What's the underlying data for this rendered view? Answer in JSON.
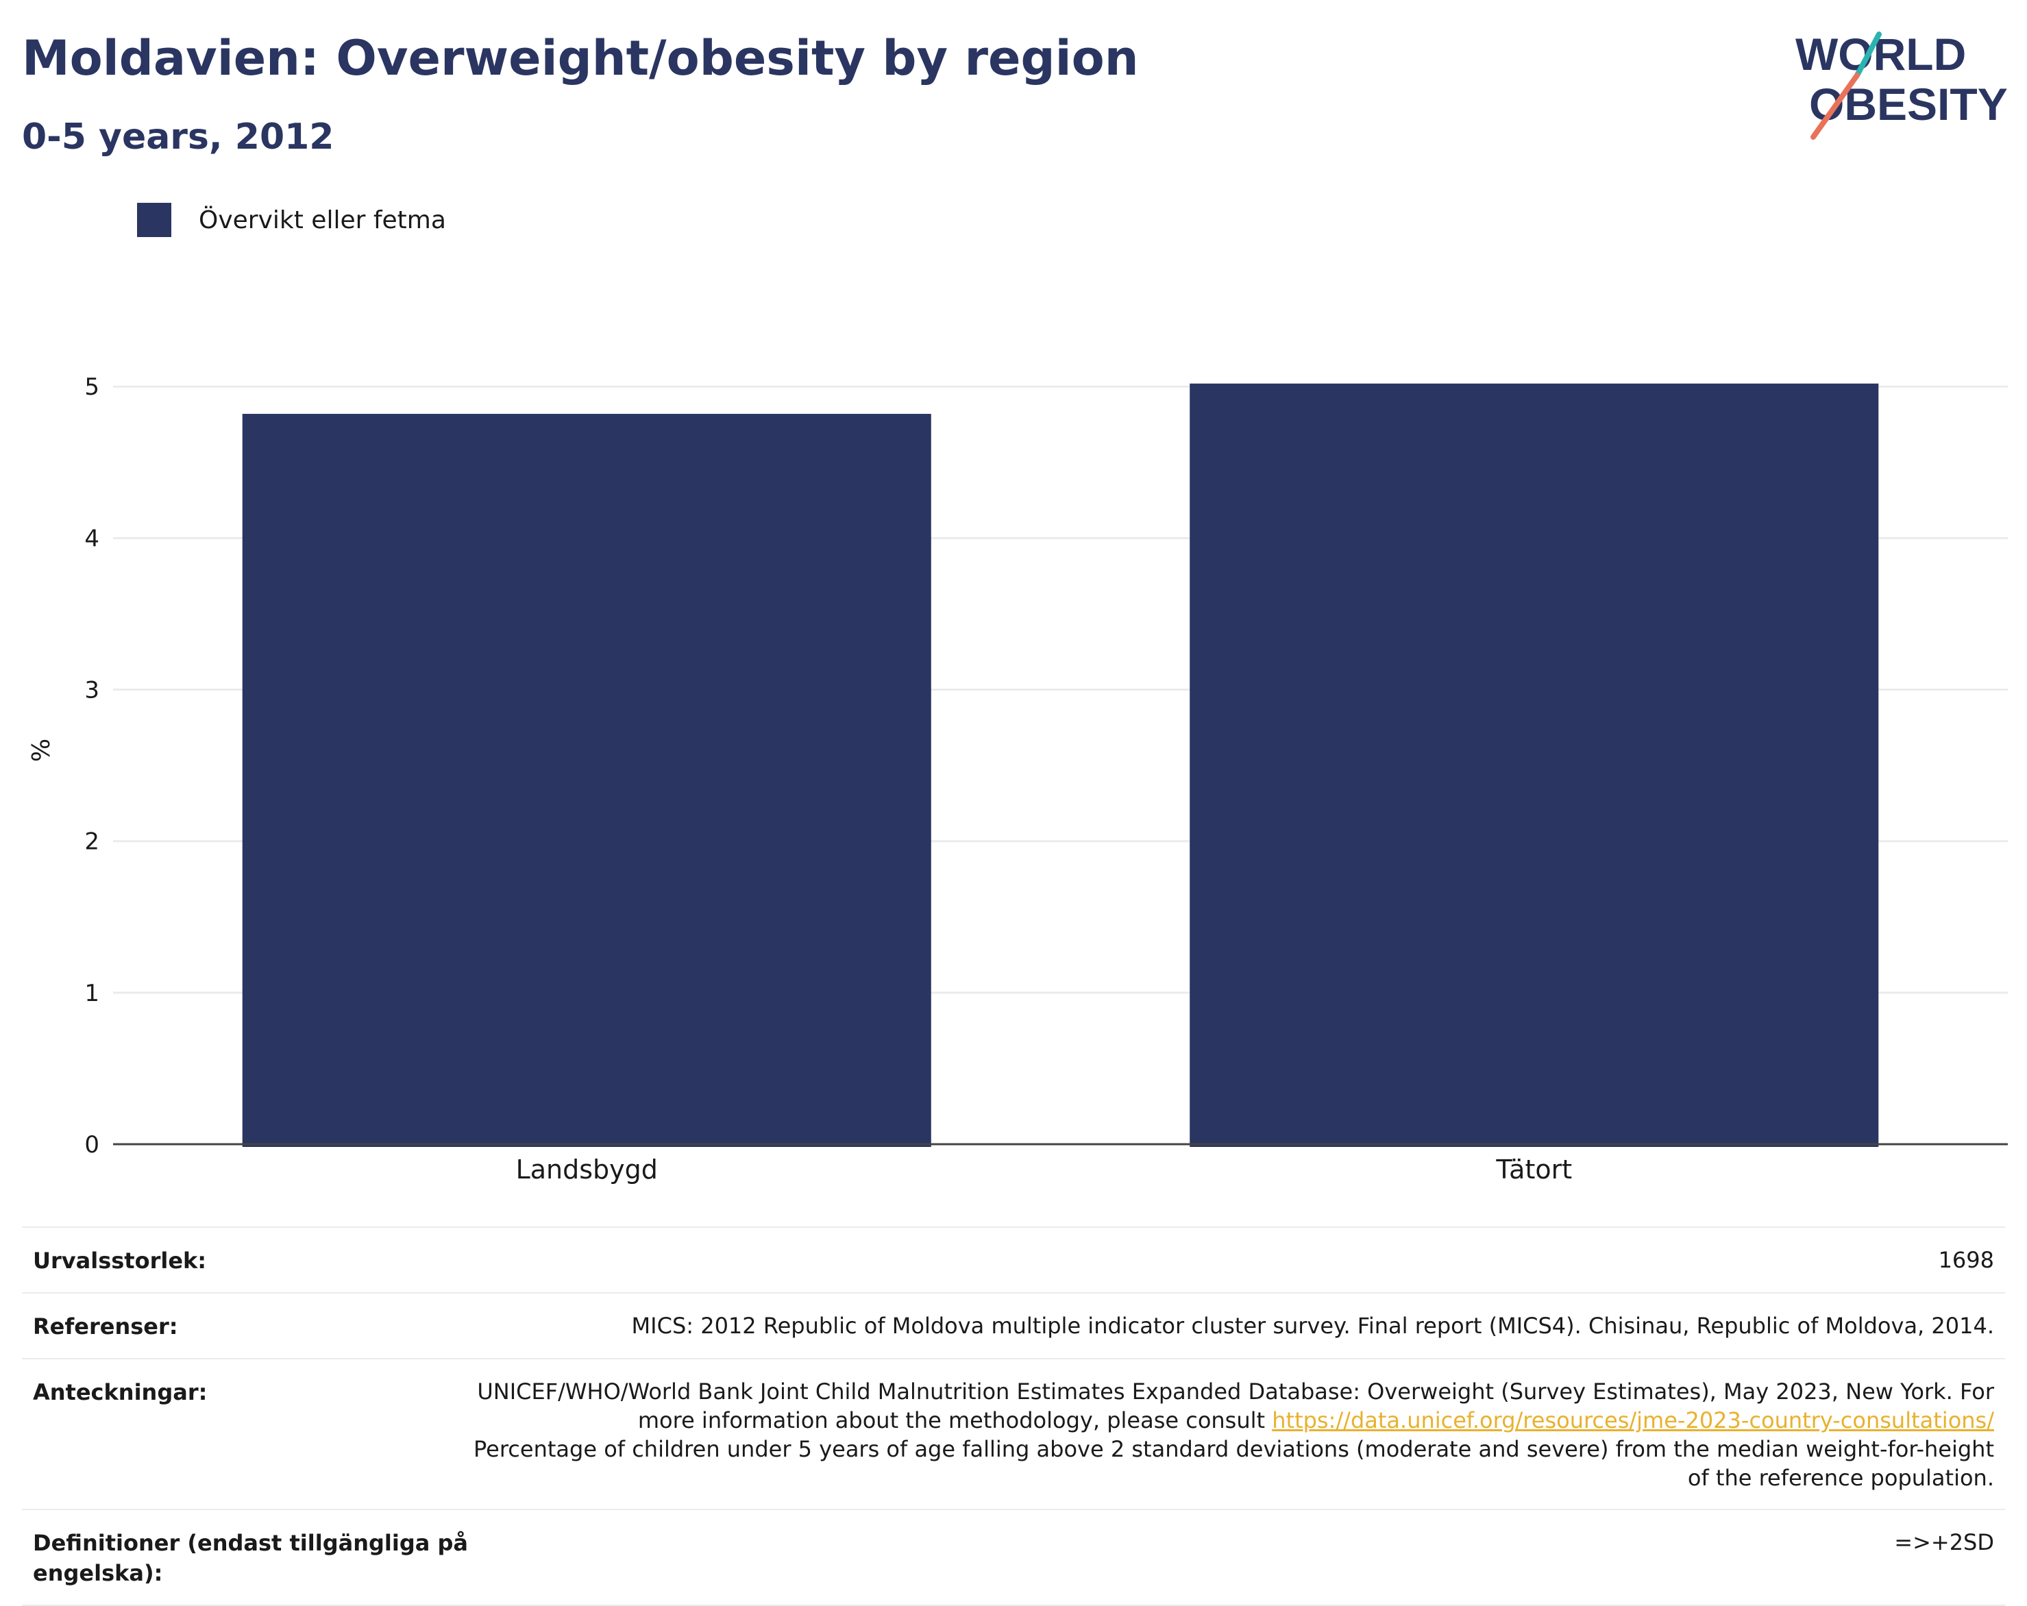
{
  "header": {
    "title": "Moldavien: Overweight/obesity by region",
    "subtitle": "0-5 years, 2012"
  },
  "logo": {
    "line1": "WORLD",
    "line2": "OBESITY",
    "icon": "world-obesity-logo"
  },
  "colors": {
    "bar": "#2a3561",
    "title": "#2a3561",
    "accent": "#e8b12e",
    "logo_teal": "#2bb3b1",
    "logo_coral": "#e8735a",
    "grid": "#e9ecef",
    "axis": "#444444"
  },
  "chart_data": {
    "type": "bar",
    "categories": [
      "Landsbygd",
      "Tätort"
    ],
    "series": [
      {
        "name": "Övervikt eller fetma",
        "values": [
          4.82,
          5.02
        ]
      }
    ],
    "ylabel": "%",
    "ylim": [
      0,
      5.2
    ],
    "yticks": [
      0,
      1,
      2,
      3,
      4,
      5
    ],
    "grid": true,
    "legend_position": "top-left"
  },
  "table": {
    "sample_label": "Urvalsstorlek:",
    "sample_value": "1698",
    "refs_label": "Referenser:",
    "refs_value": "MICS: 2012 Republic of Moldova multiple indicator cluster survey. Final report (MICS4). Chisinau, Republic of Moldova, 2014.",
    "notes_label": "Anteckningar:",
    "notes_text1": "UNICEF/WHO/World Bank Joint Child Malnutrition Estimates Expanded Database: Overweight (Survey Estimates), May 2023, New York. For more information about the methodology, please consult ",
    "notes_link": "https://data.unicef.org/resources/jme-2023-country-consultations/",
    "notes_text2": "Percentage of children under 5 years of age falling above 2 standard deviations (moderate and severe) from the median weight-for-height of the reference population.",
    "defs_label": "Definitioner (endast tillgängliga på engelska):",
    "defs_value": "=>+2SD"
  }
}
